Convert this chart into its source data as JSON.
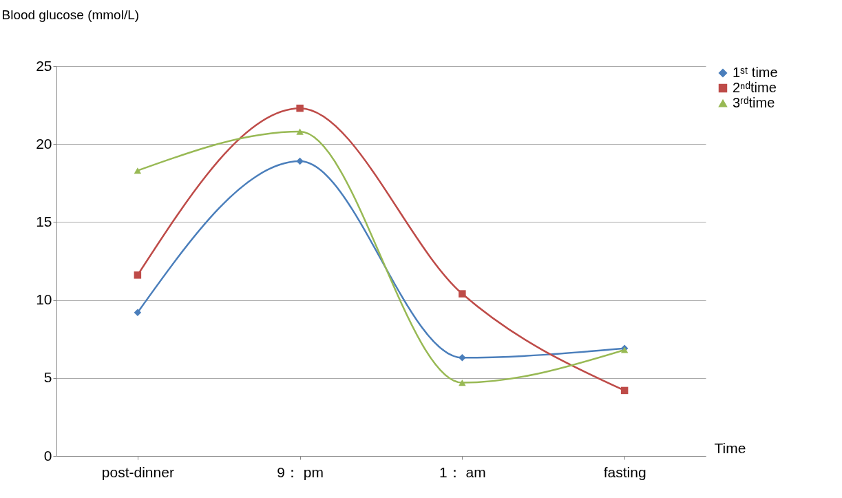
{
  "chart_data": {
    "type": "line",
    "ylabel": "Blood glucose  (mmol/L)",
    "xlabel": "Time",
    "categories": [
      "post-dinner",
      "9： pm",
      "1： am",
      "fasting"
    ],
    "series": [
      {
        "name": "1ˢᵗ time",
        "color": "#4a7ebb",
        "marker": "diamond",
        "values": [
          9.2,
          18.9,
          6.3,
          6.9
        ]
      },
      {
        "name": "2ⁿᵈtime",
        "color": "#be4b48",
        "marker": "square",
        "values": [
          11.6,
          22.3,
          10.4,
          4.2
        ]
      },
      {
        "name": "3ʳᵈtime",
        "color": "#98b954",
        "marker": "triangle",
        "values": [
          18.3,
          20.8,
          4.7,
          6.8
        ]
      }
    ],
    "ylim": [
      0,
      25
    ],
    "yticks": [
      0,
      5,
      10,
      15,
      20,
      25
    ],
    "grid": "y",
    "legend": "right",
    "line_style": "solid"
  }
}
